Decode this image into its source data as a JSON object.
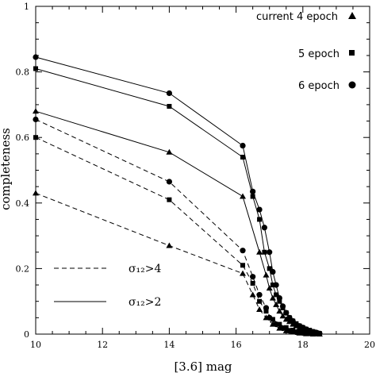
{
  "chart_data": {
    "type": "line",
    "xlabel": "[3.6] mag",
    "ylabel": "completeness",
    "xlim": [
      10,
      20
    ],
    "ylim": [
      0,
      1
    ],
    "x_ticks": [
      "10",
      "12",
      "14",
      "16",
      "18",
      "20"
    ],
    "y_ticks": [
      "0",
      "0.2",
      "0.4",
      "0.6",
      "0.8",
      "1"
    ],
    "x_tick_values": [
      10,
      12,
      14,
      16,
      18,
      20
    ],
    "y_tick_values": [
      0,
      0.2,
      0.4,
      0.6,
      0.8,
      1.0
    ],
    "grid": false,
    "epoch_legend": [
      {
        "label": "current 4 epoch",
        "marker": "triangle"
      },
      {
        "label": "5 epoch",
        "marker": "square"
      },
      {
        "label": "6 epoch",
        "marker": "circle"
      }
    ],
    "line_legend": [
      {
        "label": "σ₁₂>4",
        "style": "dashed"
      },
      {
        "label": "σ₁₂>2",
        "style": "solid"
      }
    ],
    "series": [
      {
        "epoch": 4,
        "threshold": 2,
        "style": "solid",
        "marker": "triangle",
        "points": [
          [
            10,
            0.68
          ],
          [
            14,
            0.555
          ],
          [
            16.2,
            0.42
          ],
          [
            16.7,
            0.25
          ],
          [
            16.9,
            0.18
          ],
          [
            17,
            0.14
          ],
          [
            17.1,
            0.11
          ],
          [
            17.2,
            0.09
          ],
          [
            17.3,
            0.07
          ],
          [
            17.4,
            0.055
          ],
          [
            17.5,
            0.045
          ],
          [
            17.6,
            0.038
          ],
          [
            17.7,
            0.03
          ],
          [
            17.8,
            0.025
          ],
          [
            17.9,
            0.02
          ],
          [
            18,
            0.016
          ],
          [
            18.1,
            0.012
          ],
          [
            18.2,
            0.009
          ],
          [
            18.3,
            0.005
          ],
          [
            18.4,
            0.003
          ],
          [
            18.5,
            0.0
          ]
        ]
      },
      {
        "epoch": 5,
        "threshold": 2,
        "style": "solid",
        "marker": "square",
        "points": [
          [
            10,
            0.81
          ],
          [
            14,
            0.695
          ],
          [
            16.2,
            0.54
          ],
          [
            16.5,
            0.42
          ],
          [
            16.7,
            0.35
          ],
          [
            16.85,
            0.25
          ],
          [
            17,
            0.2
          ],
          [
            17.1,
            0.15
          ],
          [
            17.2,
            0.12
          ],
          [
            17.3,
            0.1
          ],
          [
            17.4,
            0.08
          ],
          [
            17.5,
            0.065
          ],
          [
            17.6,
            0.05
          ],
          [
            17.7,
            0.04
          ],
          [
            17.8,
            0.032
          ],
          [
            17.9,
            0.025
          ],
          [
            18,
            0.02
          ],
          [
            18.1,
            0.015
          ],
          [
            18.2,
            0.012
          ],
          [
            18.3,
            0.008
          ],
          [
            18.4,
            0.005
          ],
          [
            18.5,
            0.002
          ]
        ]
      },
      {
        "epoch": 6,
        "threshold": 2,
        "style": "solid",
        "marker": "circle",
        "points": [
          [
            10,
            0.845
          ],
          [
            14,
            0.735
          ],
          [
            16.2,
            0.575
          ],
          [
            16.5,
            0.435
          ],
          [
            16.7,
            0.38
          ],
          [
            16.85,
            0.325
          ],
          [
            17,
            0.25
          ],
          [
            17.1,
            0.19
          ],
          [
            17.2,
            0.15
          ],
          [
            17.3,
            0.11
          ],
          [
            17.4,
            0.085
          ],
          [
            17.5,
            0.065
          ],
          [
            17.6,
            0.05
          ],
          [
            17.7,
            0.04
          ],
          [
            17.8,
            0.03
          ],
          [
            17.9,
            0.025
          ],
          [
            18,
            0.02
          ],
          [
            18.1,
            0.015
          ],
          [
            18.2,
            0.01
          ],
          [
            18.3,
            0.007
          ],
          [
            18.4,
            0.005
          ],
          [
            18.5,
            0.002
          ]
        ]
      },
      {
        "epoch": 4,
        "threshold": 4,
        "style": "dashed",
        "marker": "triangle",
        "points": [
          [
            10,
            0.43
          ],
          [
            14,
            0.27
          ],
          [
            16.2,
            0.185
          ],
          [
            16.5,
            0.12
          ],
          [
            16.7,
            0.075
          ],
          [
            16.9,
            0.05
          ],
          [
            17.1,
            0.03
          ],
          [
            17.3,
            0.018
          ],
          [
            17.5,
            0.01
          ],
          [
            17.7,
            0.006
          ],
          [
            17.9,
            0.003
          ],
          [
            18.1,
            0.001
          ],
          [
            18.3,
            0.0
          ]
        ]
      },
      {
        "epoch": 5,
        "threshold": 4,
        "style": "dashed",
        "marker": "square",
        "points": [
          [
            10,
            0.6
          ],
          [
            14,
            0.41
          ],
          [
            16.2,
            0.21
          ],
          [
            16.5,
            0.155
          ],
          [
            16.7,
            0.1
          ],
          [
            16.9,
            0.07
          ],
          [
            17.1,
            0.045
          ],
          [
            17.3,
            0.03
          ],
          [
            17.5,
            0.02
          ],
          [
            17.7,
            0.012
          ],
          [
            17.9,
            0.008
          ],
          [
            18.1,
            0.004
          ],
          [
            18.3,
            0.002
          ]
        ]
      },
      {
        "epoch": 6,
        "threshold": 4,
        "style": "dashed",
        "marker": "circle",
        "points": [
          [
            10,
            0.655
          ],
          [
            14,
            0.465
          ],
          [
            16.2,
            0.255
          ],
          [
            16.5,
            0.175
          ],
          [
            16.7,
            0.12
          ],
          [
            16.9,
            0.08
          ],
          [
            17,
            0.05
          ],
          [
            17.2,
            0.03
          ],
          [
            17.4,
            0.018
          ],
          [
            17.6,
            0.01
          ],
          [
            17.8,
            0.006
          ],
          [
            18,
            0.004
          ],
          [
            18.2,
            0.003
          ],
          [
            18.4,
            0.002
          ]
        ]
      }
    ]
  }
}
